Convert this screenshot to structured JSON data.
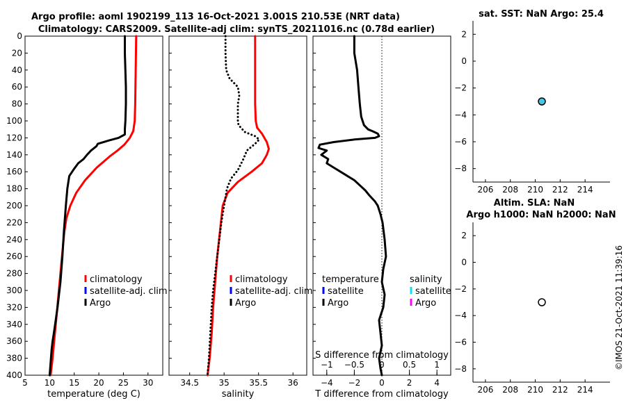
{
  "header": {
    "title_line1": "Argo profile: aoml 1902199_113 16-Oct-2021 3.001S 210.53E (NRT data)",
    "title_line2": "Climatology: CARS2009. Satellite-adj clim: synTS_20211016.nc (0.78d earlier)"
  },
  "footer": {
    "stamp": "©IMOS 21-Oct-2021 11:39:16"
  },
  "chart_data": [
    {
      "id": "temperature",
      "type": "line",
      "xlabel": "temperature (deg C)",
      "ylabel": "",
      "xlim": [
        5,
        33
      ],
      "ylim": [
        400,
        0
      ],
      "xticks": [
        5,
        10,
        15,
        20,
        25,
        30
      ],
      "yticks": [
        0,
        20,
        40,
        60,
        80,
        100,
        120,
        140,
        160,
        180,
        200,
        220,
        240,
        260,
        280,
        300,
        320,
        340,
        360,
        380,
        400
      ],
      "series": [
        {
          "name": "climatology",
          "color": "#ff0000",
          "style": "solid",
          "x": [
            27.6,
            27.5,
            27.4,
            27.3,
            27.0,
            26.3,
            25.2,
            23.8,
            22.2,
            19.6,
            17.2,
            15.4,
            14.2,
            13.4,
            13.0,
            12.6,
            12.2,
            11.8,
            11.4,
            11.0,
            10.6,
            10.2
          ],
          "y": [
            0,
            40,
            80,
            100,
            112,
            120,
            128,
            135,
            142,
            155,
            170,
            185,
            200,
            215,
            230,
            255,
            280,
            305,
            330,
            355,
            380,
            400
          ]
        },
        {
          "name": "Argo",
          "color": "#000000",
          "style": "solid",
          "x": [
            25.3,
            25.3,
            25.5,
            25.5,
            25.4,
            25.3,
            25.3,
            24.0,
            22.1,
            19.8,
            19.5,
            18.4,
            17.6,
            16.9,
            15.8,
            14.8,
            14.0,
            13.6,
            13.3,
            12.9,
            12.6,
            12.2,
            11.6,
            11.0,
            10.6,
            10.4,
            10.2,
            10.0
          ],
          "y": [
            0,
            20,
            60,
            80,
            100,
            110,
            116,
            120,
            123,
            127,
            130,
            135,
            140,
            145,
            150,
            158,
            165,
            180,
            200,
            230,
            260,
            290,
            320,
            345,
            360,
            370,
            385,
            400
          ]
        }
      ],
      "legend": {
        "placement": "lower-right",
        "entries": [
          {
            "label": "climatology",
            "color": "#ff0000"
          },
          {
            "label": "satellite-adj. clim",
            "color": "#0000ff"
          },
          {
            "label": "Argo",
            "color": "#000000"
          }
        ]
      }
    },
    {
      "id": "salinity",
      "type": "line",
      "xlabel": "salinity",
      "ylabel": "",
      "xlim": [
        34.2,
        36.2
      ],
      "ylim": [
        400,
        0
      ],
      "xticks": [
        34.5,
        35,
        35.5,
        36
      ],
      "yticks": [],
      "series": [
        {
          "name": "climatology",
          "color": "#ff0000",
          "style": "solid",
          "x": [
            35.45,
            35.45,
            35.45,
            35.46,
            35.48,
            35.55,
            35.62,
            35.65,
            35.62,
            35.55,
            35.4,
            35.2,
            35.05,
            34.98,
            34.94,
            34.9,
            34.87,
            34.84,
            34.82,
            34.79,
            34.76
          ],
          "y": [
            0,
            40,
            80,
            100,
            108,
            115,
            125,
            133,
            140,
            150,
            160,
            172,
            185,
            200,
            230,
            260,
            290,
            320,
            350,
            380,
            400
          ]
        },
        {
          "name": "Argo",
          "color": "#000000",
          "style": "dotted",
          "x": [
            35.02,
            35.02,
            35.03,
            35.08,
            35.2,
            35.22,
            35.2,
            35.2,
            35.2,
            35.21,
            35.3,
            35.45,
            35.51,
            35.45,
            35.33,
            35.28,
            35.2,
            35.1,
            35.04,
            35.0,
            34.96,
            34.93,
            34.9,
            34.87,
            34.84,
            34.82,
            34.8,
            34.78,
            34.76
          ],
          "y": [
            0,
            20,
            40,
            50,
            60,
            70,
            80,
            90,
            100,
            105,
            113,
            118,
            122,
            127,
            135,
            145,
            158,
            168,
            180,
            200,
            220,
            240,
            260,
            280,
            300,
            320,
            350,
            380,
            400
          ]
        }
      ],
      "legend": {
        "placement": "lower-right",
        "entries": [
          {
            "label": "climatology",
            "color": "#ff0000"
          },
          {
            "label": "satellite-adj. clim",
            "color": "#0000ff"
          },
          {
            "label": "Argo",
            "color": "#000000"
          }
        ]
      }
    },
    {
      "id": "difference",
      "type": "line",
      "xlabel": "T difference from climatology",
      "xlabel_top": "S difference from climatology",
      "xlim": [
        -5,
        5
      ],
      "ylim": [
        400,
        0
      ],
      "xticks": [
        -4,
        -2,
        0,
        2,
        4
      ],
      "xticks_top": [
        -1,
        -0.5,
        0,
        0.5,
        1
      ],
      "xlim_top": [
        -1.25,
        1.25
      ],
      "zero_line": 0,
      "series": [
        {
          "name": "temperature",
          "color": "#000000",
          "style": "solid",
          "x": [
            -2.0,
            -2.0,
            -1.8,
            -1.7,
            -1.6,
            -1.5,
            -1.3,
            -1.0,
            -0.7,
            -0.3,
            -0.2,
            -0.5,
            -2.0,
            -3.5,
            -4.5,
            -4.6,
            -4.0,
            -4.4,
            -3.9,
            -4.0,
            -3.5,
            -3.0,
            -2.5,
            -2.0,
            -1.6,
            -1.2,
            -0.9,
            -0.5,
            -0.3,
            -0.1,
            0.05,
            0.2,
            0.3,
            0.1,
            0.0,
            0.2,
            0.1,
            -0.2,
            -0.1,
            0.0,
            -0.2,
            -0.1,
            0.0
          ],
          "y": [
            0,
            20,
            40,
            60,
            80,
            95,
            105,
            110,
            112,
            115,
            118,
            120,
            122,
            125,
            128,
            132,
            135,
            140,
            145,
            150,
            155,
            160,
            165,
            170,
            176,
            182,
            188,
            195,
            200,
            210,
            220,
            240,
            260,
            275,
            290,
            305,
            320,
            335,
            350,
            365,
            380,
            392,
            400
          ]
        }
      ],
      "legend_left": {
        "title": "temperature",
        "entries": [
          {
            "label": "satellite",
            "color": "#0000ff"
          },
          {
            "label": "Argo",
            "color": "#000000"
          }
        ]
      },
      "legend_right": {
        "title": "salinity",
        "entries": [
          {
            "label": "satellite",
            "color": "#00e5ee"
          },
          {
            "label": "Argo",
            "color": "#ff00ff"
          }
        ]
      }
    },
    {
      "id": "sst_map",
      "type": "scatter",
      "title": "sat. SST: NaN Argo: 25.4",
      "xlim": [
        205,
        216
      ],
      "ylim": [
        -9,
        3
      ],
      "xticks": [
        206,
        208,
        210,
        212,
        214
      ],
      "yticks": [
        2,
        0,
        -2,
        -4,
        -6,
        -8
      ],
      "points": [
        {
          "x": 210.53,
          "y": -3.0,
          "fill": "#44c8e8"
        }
      ]
    },
    {
      "id": "sla_map",
      "type": "scatter",
      "title": "Altim. SLA: NaN",
      "subtitle": "Argo h1000: NaN h2000: NaN",
      "xlim": [
        205,
        216
      ],
      "ylim": [
        -9,
        3
      ],
      "xticks": [
        206,
        208,
        210,
        212,
        214
      ],
      "yticks": [
        2,
        0,
        -2,
        -4,
        -6,
        -8
      ],
      "points": [
        {
          "x": 210.53,
          "y": -3.0,
          "fill": "#ffffff"
        }
      ]
    }
  ]
}
